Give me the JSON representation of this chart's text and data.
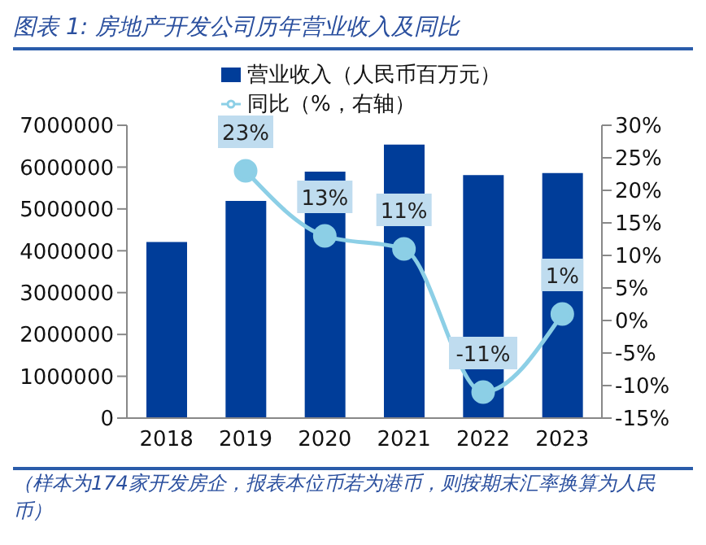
{
  "chart_data": {
    "type": "bar",
    "title": "图表 1: 房地产开发公司历年营业收入及同比",
    "categories": [
      "2018",
      "2019",
      "2020",
      "2021",
      "2022",
      "2023"
    ],
    "series": [
      {
        "name": "营业收入（人民币百万元）",
        "color": "#003d99",
        "values": [
          4210000,
          5190000,
          5890000,
          6540000,
          5810000,
          5860000
        ]
      },
      {
        "name": "同比（%，右轴）",
        "type": "line",
        "axis": "y2",
        "color": "#8ccfe6",
        "values": [
          null,
          23,
          13,
          11,
          -11,
          1
        ],
        "value_labels": [
          null,
          "23%",
          "13%",
          "11%",
          "-11%",
          "1%"
        ]
      }
    ],
    "ylim": [
      0,
      7000000
    ],
    "yticks": [
      0,
      1000000,
      2000000,
      3000000,
      4000000,
      5000000,
      6000000,
      7000000
    ],
    "y2lim": [
      -15,
      30
    ],
    "y2ticks": [
      {
        "value": -15,
        "label": "-15%"
      },
      {
        "value": -10,
        "label": "-10%"
      },
      {
        "value": -5,
        "label": "-5%"
      },
      {
        "value": 0,
        "label": "0%"
      },
      {
        "value": 5,
        "label": "5%"
      },
      {
        "value": 10,
        "label": "10%"
      },
      {
        "value": 15,
        "label": "15%"
      },
      {
        "value": 20,
        "label": "20%"
      },
      {
        "value": 25,
        "label": "25%"
      },
      {
        "value": 30,
        "label": "30%"
      }
    ],
    "grid": false,
    "legend": "top",
    "marker": "circle",
    "line_style": "solid",
    "annotations": [
      "（样本为174家开发房企，报表本位币若为港币，则按期末汇率换算为人民币）"
    ]
  }
}
